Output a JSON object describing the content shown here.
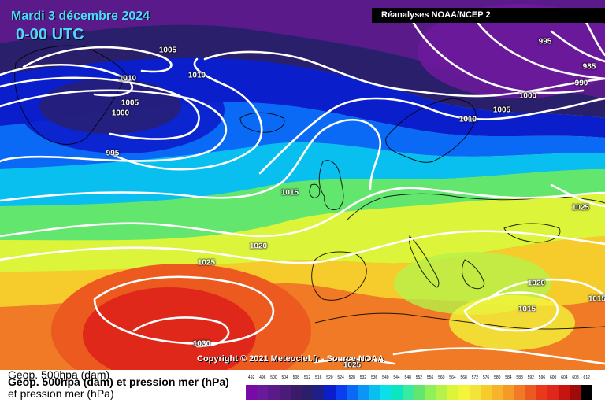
{
  "header": {
    "date": "Mardi 3 décembre 2024",
    "time": "0-00 UTC",
    "source": "Réanalyses NOAA/NCEP 2"
  },
  "copyright": "Copyright © 2021 Meteociel.fr - Source NOAA",
  "legend": {
    "line1": "Geop. 500hpa (dam)",
    "line2": "Geop. 500hpa (dam) et pression mer (hPa)",
    "line3": "et pression mer (hPa)"
  },
  "isobar_labels": [
    "1005",
    "1010",
    "1005",
    "1000",
    "995",
    "1010",
    "995",
    "985",
    "990",
    "1000",
    "1005",
    "1010",
    "1015",
    "1025",
    "1020",
    "1025",
    "1020",
    "1015",
    "1030",
    "1025",
    "1015"
  ],
  "scale": {
    "values": [
      "492",
      "496",
      "500",
      "504",
      "508",
      "512",
      "516",
      "520",
      "524",
      "528",
      "532",
      "536",
      "540",
      "544",
      "548",
      "552",
      "556",
      "560",
      "564",
      "568",
      "572",
      "576",
      "580",
      "584",
      "588",
      "592",
      "596",
      "600",
      "604",
      "608",
      "612"
    ],
    "colors": [
      "#7a0aa8",
      "#6a1a9a",
      "#5a1a8a",
      "#4a1b78",
      "#3a1b6a",
      "#2a1f6a",
      "#1f1f8a",
      "#0b1ecc",
      "#0b3ef0",
      "#0b6af5",
      "#0b96f5",
      "#08bff0",
      "#0be0e6",
      "#0be6c0",
      "#3aeaa0",
      "#63e66e",
      "#8ff05a",
      "#b7f24a",
      "#dcf43a",
      "#f4f43a",
      "#f4e43a",
      "#f5cc2c",
      "#f5b42c",
      "#f59a25",
      "#f07a25",
      "#ec5a20",
      "#e83a1a",
      "#e0281a",
      "#c81410",
      "#a00a0a",
      "#000000"
    ]
  }
}
